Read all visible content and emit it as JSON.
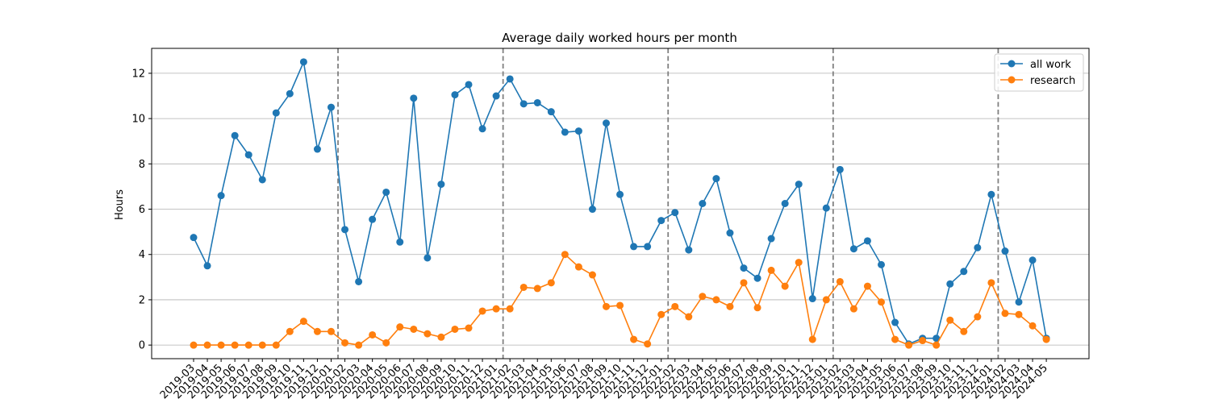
{
  "chart_data": {
    "type": "line",
    "title": "Average daily worked hours per month",
    "xlabel": "",
    "ylabel": "Hours",
    "ylim": [
      -0.6,
      13.1
    ],
    "yticks": [
      0,
      2,
      4,
      6,
      8,
      10,
      12
    ],
    "grid": "horizontal",
    "legend_position": "top-right",
    "x": [
      "2019-03",
      "2019-04",
      "2019-05",
      "2019-06",
      "2019-07",
      "2019-08",
      "2019-09",
      "2019-10",
      "2019-11",
      "2019-12",
      "2020-01",
      "2020-02",
      "2020-03",
      "2020-04",
      "2020-05",
      "2020-06",
      "2020-07",
      "2020-08",
      "2020-09",
      "2020-10",
      "2020-11",
      "2020-12",
      "2021-01",
      "2021-02",
      "2021-03",
      "2021-04",
      "2021-05",
      "2021-06",
      "2021-07",
      "2021-08",
      "2021-09",
      "2021-10",
      "2021-11",
      "2021-12",
      "2022-01",
      "2022-02",
      "2022-03",
      "2022-04",
      "2022-05",
      "2022-06",
      "2022-07",
      "2022-08",
      "2022-09",
      "2022-10",
      "2022-11",
      "2022-12",
      "2023-01",
      "2023-02",
      "2023-03",
      "2023-04",
      "2023-05",
      "2023-06",
      "2023-07",
      "2023-08",
      "2023-09",
      "2023-10",
      "2023-11",
      "2023-12",
      "2024-01",
      "2024-02",
      "2024-03",
      "2024-04",
      "2024-05"
    ],
    "year_separators": [
      "2020-02",
      "2021-02",
      "2022-02",
      "2023-02",
      "2024-02"
    ],
    "series": [
      {
        "name": "all work",
        "color": "#1f77b4",
        "values": [
          4.75,
          3.5,
          6.6,
          9.25,
          8.4,
          7.3,
          10.25,
          11.1,
          12.5,
          8.65,
          10.5,
          5.1,
          2.8,
          5.55,
          6.75,
          4.55,
          10.9,
          3.85,
          7.1,
          11.05,
          11.5,
          9.55,
          11.0,
          11.75,
          10.65,
          10.7,
          10.3,
          9.4,
          9.45,
          6.0,
          9.8,
          6.65,
          4.35,
          4.35,
          5.5,
          5.85,
          4.2,
          6.25,
          7.35,
          4.95,
          3.4,
          2.95,
          4.7,
          6.25,
          7.1,
          2.05,
          6.05,
          7.75,
          4.25,
          4.6,
          3.55,
          1.0,
          0.05,
          0.3,
          0.3,
          2.7,
          3.25,
          4.3,
          6.65,
          4.15,
          1.9,
          3.75,
          0.3
        ]
      },
      {
        "name": "research",
        "color": "#ff7f0e",
        "values": [
          0.0,
          0.0,
          0.0,
          0.0,
          0.0,
          0.0,
          0.0,
          0.6,
          1.05,
          0.6,
          0.6,
          0.1,
          0.0,
          0.45,
          0.1,
          0.8,
          0.7,
          0.5,
          0.35,
          0.7,
          0.75,
          1.5,
          1.6,
          1.6,
          2.55,
          2.5,
          2.75,
          4.0,
          3.45,
          3.1,
          1.7,
          1.75,
          0.25,
          0.05,
          1.35,
          1.7,
          1.25,
          2.15,
          2.0,
          1.7,
          2.75,
          1.65,
          3.3,
          2.6,
          3.65,
          0.25,
          2.0,
          2.8,
          1.6,
          2.6,
          1.9,
          0.25,
          0.0,
          0.2,
          0.0,
          1.1,
          0.6,
          1.25,
          2.75,
          1.4,
          1.35,
          0.85,
          0.25
        ]
      }
    ]
  }
}
